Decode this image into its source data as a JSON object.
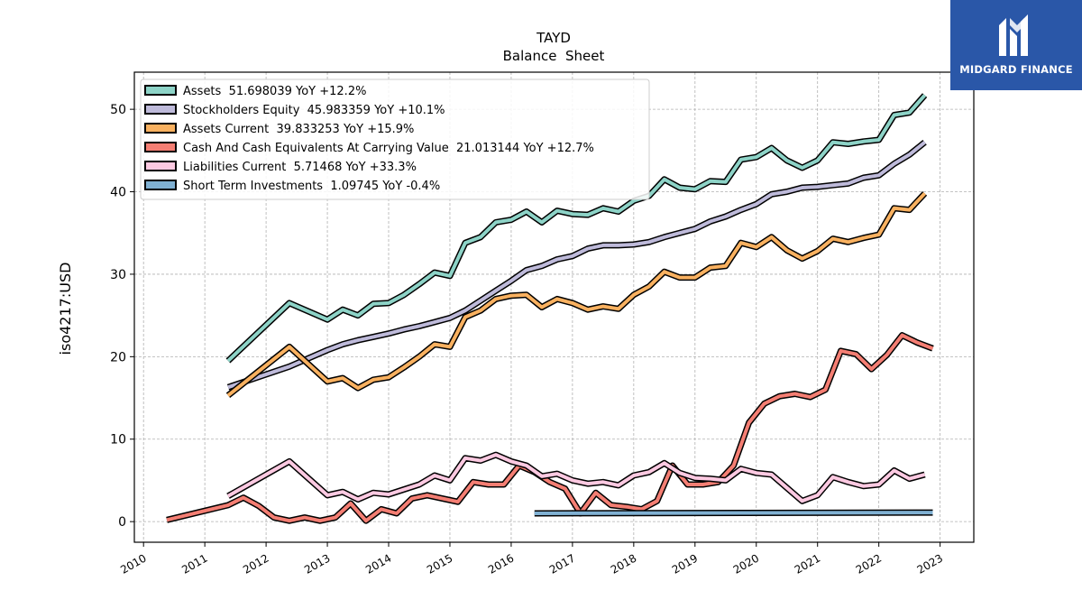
{
  "brand": {
    "name": "MIDGARD FINANCE",
    "bg_color": "#2a57a8"
  },
  "chart_data": {
    "type": "line",
    "title": "TAYD",
    "subtitle": "Balance  Sheet",
    "ylabel": "iso4217:USD",
    "xlabel": "",
    "xlim": [
      2009.85,
      2023.55
    ],
    "ylim": [
      -2.5,
      54.5
    ],
    "yticks": [
      0,
      10,
      20,
      30,
      40,
      50
    ],
    "xticks": [
      2010,
      2011,
      2012,
      2013,
      2014,
      2015,
      2016,
      2017,
      2018,
      2019,
      2020,
      2021,
      2022,
      2023
    ],
    "grid": true,
    "legend_position": "upper-left",
    "series": [
      {
        "name": "Assets",
        "legend": "Assets  51.698039 YoY +12.2%",
        "color": "#8dd3c7",
        "points": [
          [
            2011.38,
            19.5
          ],
          [
            2012.38,
            26.5
          ],
          [
            2013.0,
            24.5
          ],
          [
            2013.25,
            25.7
          ],
          [
            2013.5,
            25.0
          ],
          [
            2013.75,
            26.4
          ],
          [
            2014.0,
            26.5
          ],
          [
            2014.25,
            27.5
          ],
          [
            2014.5,
            28.8
          ],
          [
            2014.75,
            30.2
          ],
          [
            2015.0,
            29.8
          ],
          [
            2015.25,
            33.8
          ],
          [
            2015.5,
            34.5
          ],
          [
            2015.75,
            36.3
          ],
          [
            2016.0,
            36.6
          ],
          [
            2016.25,
            37.6
          ],
          [
            2016.5,
            36.3
          ],
          [
            2016.75,
            37.7
          ],
          [
            2017.0,
            37.3
          ],
          [
            2017.25,
            37.2
          ],
          [
            2017.5,
            38.0
          ],
          [
            2017.75,
            37.6
          ],
          [
            2018.0,
            38.9
          ],
          [
            2018.25,
            39.5
          ],
          [
            2018.5,
            41.5
          ],
          [
            2018.75,
            40.5
          ],
          [
            2019.0,
            40.3
          ],
          [
            2019.25,
            41.3
          ],
          [
            2019.5,
            41.2
          ],
          [
            2019.75,
            43.9
          ],
          [
            2020.0,
            44.2
          ],
          [
            2020.25,
            45.3
          ],
          [
            2020.5,
            43.8
          ],
          [
            2020.75,
            42.9
          ],
          [
            2021.0,
            43.8
          ],
          [
            2021.25,
            46.0
          ],
          [
            2021.5,
            45.8
          ],
          [
            2021.75,
            46.1
          ],
          [
            2022.0,
            46.3
          ],
          [
            2022.25,
            49.3
          ],
          [
            2022.5,
            49.6
          ],
          [
            2022.75,
            51.7
          ]
        ]
      },
      {
        "name": "Stockholders Equity",
        "legend": "Stockholders Equity  45.983359 YoY +10.1%",
        "color": "#bebada",
        "points": [
          [
            2011.38,
            16.3
          ],
          [
            2012.38,
            18.8
          ],
          [
            2013.0,
            20.8
          ],
          [
            2013.25,
            21.5
          ],
          [
            2013.5,
            22.0
          ],
          [
            2013.75,
            22.4
          ],
          [
            2014.0,
            22.8
          ],
          [
            2014.25,
            23.3
          ],
          [
            2014.5,
            23.7
          ],
          [
            2014.75,
            24.2
          ],
          [
            2015.0,
            24.7
          ],
          [
            2015.25,
            25.6
          ],
          [
            2015.5,
            26.8
          ],
          [
            2015.75,
            28.0
          ],
          [
            2016.0,
            29.2
          ],
          [
            2016.25,
            30.5
          ],
          [
            2016.5,
            31.0
          ],
          [
            2016.75,
            31.8
          ],
          [
            2017.0,
            32.2
          ],
          [
            2017.25,
            33.1
          ],
          [
            2017.5,
            33.5
          ],
          [
            2017.75,
            33.5
          ],
          [
            2018.0,
            33.6
          ],
          [
            2018.25,
            33.9
          ],
          [
            2018.5,
            34.5
          ],
          [
            2018.75,
            35.0
          ],
          [
            2019.0,
            35.5
          ],
          [
            2019.25,
            36.4
          ],
          [
            2019.5,
            37.0
          ],
          [
            2019.75,
            37.8
          ],
          [
            2020.0,
            38.5
          ],
          [
            2020.25,
            39.7
          ],
          [
            2020.5,
            40.0
          ],
          [
            2020.75,
            40.5
          ],
          [
            2021.0,
            40.6
          ],
          [
            2021.25,
            40.8
          ],
          [
            2021.5,
            41.0
          ],
          [
            2021.75,
            41.7
          ],
          [
            2022.0,
            42.0
          ],
          [
            2022.25,
            43.4
          ],
          [
            2022.5,
            44.5
          ],
          [
            2022.75,
            46.0
          ]
        ]
      },
      {
        "name": "Assets Current",
        "legend": "Assets Current  39.833253 YoY +15.9%",
        "color": "#f9b160",
        "points": [
          [
            2011.38,
            15.3
          ],
          [
            2012.38,
            21.2
          ],
          [
            2013.0,
            17.0
          ],
          [
            2013.25,
            17.4
          ],
          [
            2013.5,
            16.2
          ],
          [
            2013.75,
            17.2
          ],
          [
            2014.0,
            17.5
          ],
          [
            2014.25,
            18.7
          ],
          [
            2014.5,
            20.0
          ],
          [
            2014.75,
            21.5
          ],
          [
            2015.0,
            21.2
          ],
          [
            2015.25,
            24.8
          ],
          [
            2015.5,
            25.6
          ],
          [
            2015.75,
            27.0
          ],
          [
            2016.0,
            27.4
          ],
          [
            2016.25,
            27.5
          ],
          [
            2016.5,
            26.0
          ],
          [
            2016.75,
            27.0
          ],
          [
            2017.0,
            26.5
          ],
          [
            2017.25,
            25.7
          ],
          [
            2017.5,
            26.1
          ],
          [
            2017.75,
            25.8
          ],
          [
            2018.0,
            27.5
          ],
          [
            2018.25,
            28.5
          ],
          [
            2018.5,
            30.3
          ],
          [
            2018.75,
            29.6
          ],
          [
            2019.0,
            29.6
          ],
          [
            2019.25,
            30.8
          ],
          [
            2019.5,
            31.0
          ],
          [
            2019.75,
            33.8
          ],
          [
            2020.0,
            33.3
          ],
          [
            2020.25,
            34.5
          ],
          [
            2020.5,
            32.9
          ],
          [
            2020.75,
            31.9
          ],
          [
            2021.0,
            32.8
          ],
          [
            2021.25,
            34.3
          ],
          [
            2021.5,
            33.9
          ],
          [
            2021.75,
            34.4
          ],
          [
            2022.0,
            34.8
          ],
          [
            2022.25,
            38.0
          ],
          [
            2022.5,
            37.8
          ],
          [
            2022.75,
            39.8
          ]
        ]
      },
      {
        "name": "Cash And Cash Equivalents At Carrying Value",
        "legend": "Cash And Cash Equivalents At Carrying Value  21.013144 YoY +12.7%",
        "color": "#f47e73",
        "points": [
          [
            2010.38,
            0.2
          ],
          [
            2011.38,
            2.0
          ],
          [
            2011.63,
            2.9
          ],
          [
            2011.88,
            1.9
          ],
          [
            2012.13,
            0.5
          ],
          [
            2012.38,
            0.1
          ],
          [
            2012.63,
            0.5
          ],
          [
            2012.88,
            0.1
          ],
          [
            2013.13,
            0.5
          ],
          [
            2013.38,
            2.2
          ],
          [
            2013.63,
            0.1
          ],
          [
            2013.88,
            1.5
          ],
          [
            2014.13,
            1.0
          ],
          [
            2014.38,
            2.8
          ],
          [
            2014.63,
            3.2
          ],
          [
            2014.88,
            2.8
          ],
          [
            2015.13,
            2.4
          ],
          [
            2015.38,
            4.8
          ],
          [
            2015.63,
            4.5
          ],
          [
            2015.88,
            4.5
          ],
          [
            2016.13,
            6.8
          ],
          [
            2016.38,
            6.0
          ],
          [
            2016.63,
            4.8
          ],
          [
            2016.88,
            4.0
          ],
          [
            2017.13,
            1.0
          ],
          [
            2017.38,
            3.5
          ],
          [
            2017.63,
            2.0
          ],
          [
            2017.88,
            1.8
          ],
          [
            2018.13,
            1.5
          ],
          [
            2018.38,
            2.5
          ],
          [
            2018.63,
            6.8
          ],
          [
            2018.88,
            4.5
          ],
          [
            2019.13,
            4.5
          ],
          [
            2019.38,
            4.8
          ],
          [
            2019.63,
            6.8
          ],
          [
            2019.88,
            12.0
          ],
          [
            2020.13,
            14.3
          ],
          [
            2020.38,
            15.2
          ],
          [
            2020.63,
            15.5
          ],
          [
            2020.88,
            15.1
          ],
          [
            2021.13,
            16.0
          ],
          [
            2021.38,
            20.7
          ],
          [
            2021.63,
            20.3
          ],
          [
            2021.88,
            18.5
          ],
          [
            2022.13,
            20.2
          ],
          [
            2022.38,
            22.6
          ],
          [
            2022.63,
            21.7
          ],
          [
            2022.88,
            21.0
          ]
        ]
      },
      {
        "name": "Liabilities Current",
        "legend": "Liabilities Current  5.71468 YoY +33.3%",
        "color": "#fcc9e1",
        "points": [
          [
            2011.38,
            3.1
          ],
          [
            2012.38,
            7.3
          ],
          [
            2013.0,
            3.2
          ],
          [
            2013.25,
            3.6
          ],
          [
            2013.5,
            2.7
          ],
          [
            2013.75,
            3.5
          ],
          [
            2014.0,
            3.3
          ],
          [
            2014.25,
            3.9
          ],
          [
            2014.5,
            4.5
          ],
          [
            2014.75,
            5.6
          ],
          [
            2015.0,
            5.0
          ],
          [
            2015.25,
            7.7
          ],
          [
            2015.5,
            7.4
          ],
          [
            2015.75,
            8.1
          ],
          [
            2016.0,
            7.3
          ],
          [
            2016.25,
            6.8
          ],
          [
            2016.5,
            5.5
          ],
          [
            2016.75,
            5.8
          ],
          [
            2017.0,
            5.0
          ],
          [
            2017.25,
            4.6
          ],
          [
            2017.5,
            4.8
          ],
          [
            2017.75,
            4.4
          ],
          [
            2018.0,
            5.6
          ],
          [
            2018.25,
            6.0
          ],
          [
            2018.5,
            7.1
          ],
          [
            2018.75,
            5.9
          ],
          [
            2019.0,
            5.3
          ],
          [
            2019.25,
            5.2
          ],
          [
            2019.5,
            5.0
          ],
          [
            2019.75,
            6.4
          ],
          [
            2020.0,
            5.9
          ],
          [
            2020.25,
            5.7
          ],
          [
            2020.5,
            4.1
          ],
          [
            2020.75,
            2.5
          ],
          [
            2021.0,
            3.2
          ],
          [
            2021.25,
            5.4
          ],
          [
            2021.5,
            4.8
          ],
          [
            2021.75,
            4.3
          ],
          [
            2022.0,
            4.5
          ],
          [
            2022.25,
            6.2
          ],
          [
            2022.5,
            5.2
          ],
          [
            2022.75,
            5.7
          ]
        ]
      },
      {
        "name": "Short Term Investments",
        "legend": "Short Term Investments  1.09745 YoY -0.4%",
        "color": "#80b1d3",
        "points": [
          [
            2016.38,
            1.0
          ],
          [
            2022.88,
            1.1
          ]
        ]
      }
    ]
  }
}
